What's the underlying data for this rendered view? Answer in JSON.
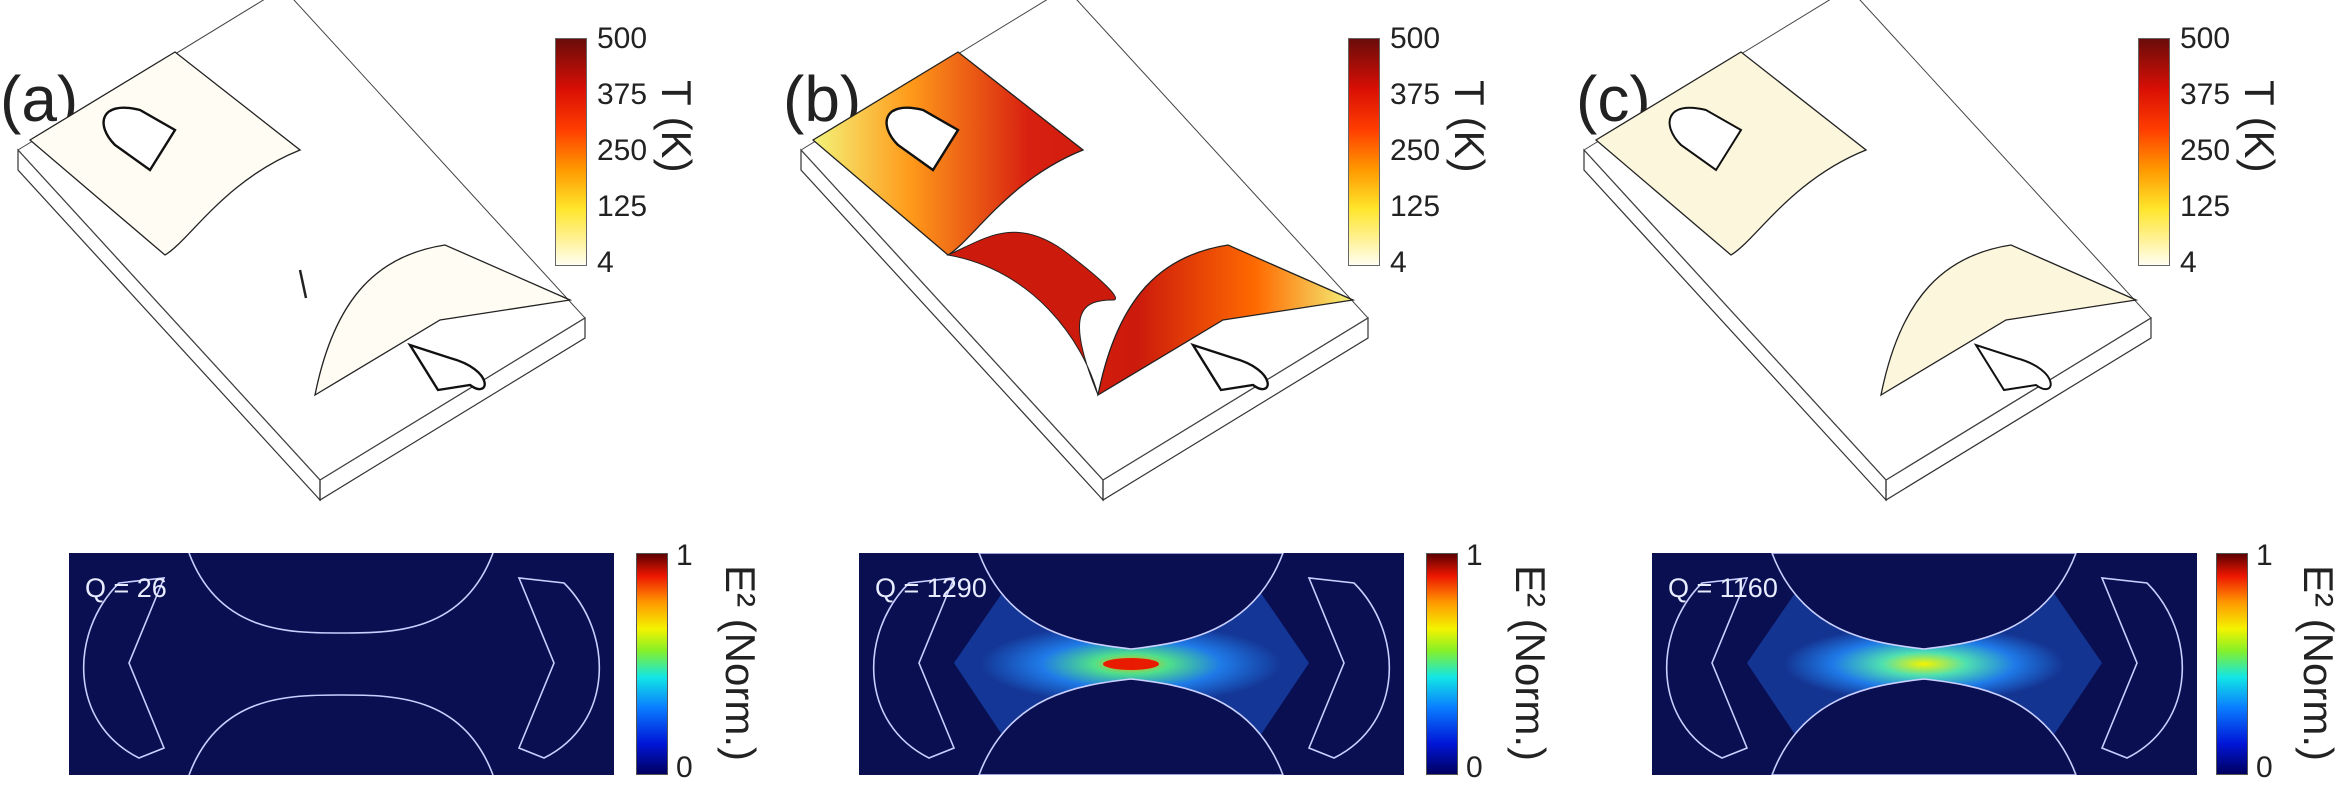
{
  "panels": [
    {
      "label": "(a)",
      "t_ticks": [
        "500",
        "375",
        "250",
        "125",
        "4"
      ],
      "t_label": "T (K)",
      "q_text": "Q = 26",
      "e_ticks": [
        "1",
        "0"
      ],
      "e_label": "E² (Norm.)",
      "heated": false
    },
    {
      "label": "(b)",
      "t_ticks": [
        "500",
        "375",
        "250",
        "125",
        "4"
      ],
      "t_label": "T (K)",
      "q_text": "Q = 1290",
      "e_ticks": [
        "1",
        "0"
      ],
      "e_label": "E² (Norm.)",
      "heated": true
    },
    {
      "label": "(c)",
      "t_ticks": [
        "500",
        "375",
        "250",
        "125",
        "4"
      ],
      "t_label": "T (K)",
      "q_text": "Q = 1160",
      "e_ticks": [
        "1",
        "0"
      ],
      "e_label": "E² (Norm.)",
      "heated": false
    }
  ],
  "colors": {
    "field_background": "#0a0f52",
    "hot": "#cc1a0c",
    "warm": "#ff7a00",
    "cool": "#f3f37a",
    "cold": "#fffaf0"
  }
}
